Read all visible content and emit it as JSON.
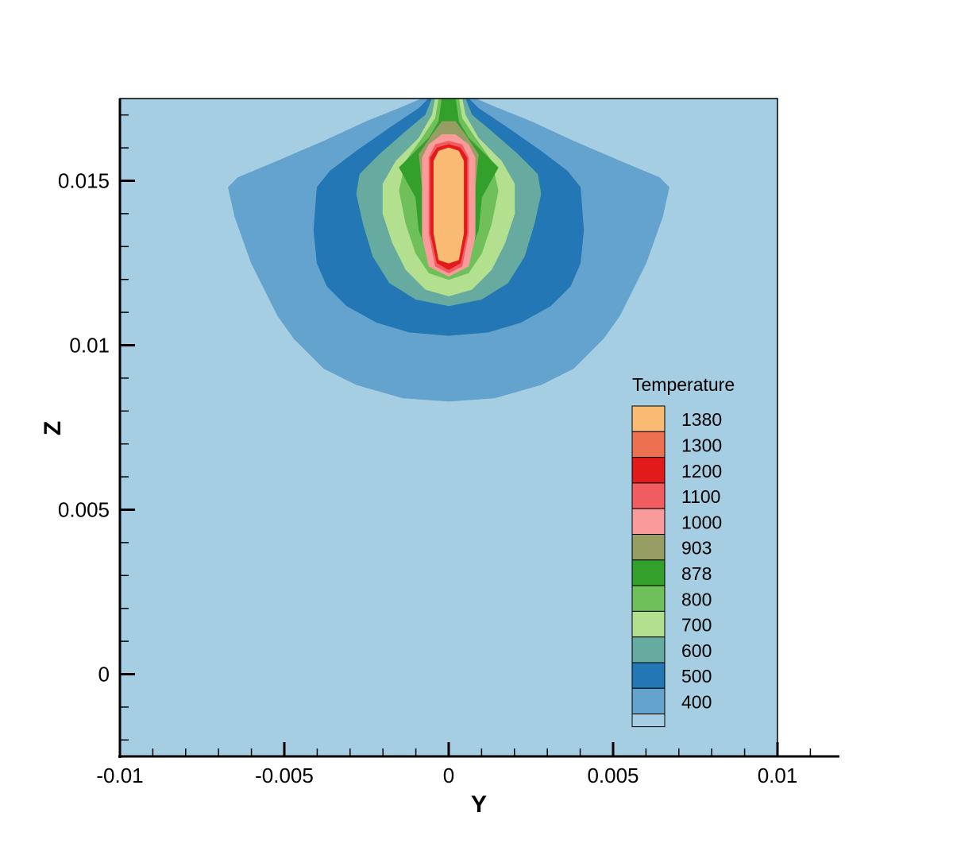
{
  "chart_data": {
    "type": "heatmap",
    "subtype": "filled-contour",
    "xlabel": "Y",
    "ylabel": "Z",
    "xlim": [
      -0.01,
      0.0119
    ],
    "ylim": [
      -0.0025,
      0.0175
    ],
    "plot_region": {
      "x": [
        -0.01,
        0.01
      ],
      "z": [
        -0.0025,
        0.0175
      ]
    },
    "xticks": [
      -0.01,
      -0.005,
      0,
      0.005,
      0.01
    ],
    "xtick_labels": [
      "-0.01",
      "-0.005",
      "0",
      "0.005",
      "0.01"
    ],
    "yticks": [
      0,
      0.005,
      0.01,
      0.015
    ],
    "ytick_labels": [
      "0",
      "0.005",
      "0.01",
      "0.015"
    ],
    "legend": {
      "title": "Temperature",
      "position": "lower-right",
      "levels": [
        {
          "label": "1380",
          "color": "#f9bb74"
        },
        {
          "label": "1300",
          "color": "#ed7151"
        },
        {
          "label": "1200",
          "color": "#e31a1c"
        },
        {
          "label": "1100",
          "color": "#f05c5f"
        },
        {
          "label": "1000",
          "color": "#f99b9a"
        },
        {
          "label": "903",
          "color": "#969e64"
        },
        {
          "label": "878",
          "color": "#33a02c"
        },
        {
          "label": "800",
          "color": "#6fbf5a"
        },
        {
          "label": "700",
          "color": "#b2e08f"
        },
        {
          "label": "600",
          "color": "#66aaa0"
        },
        {
          "label": "500",
          "color": "#2277b4"
        },
        {
          "label": "400",
          "color": "#64a3cd"
        },
        {
          "label": "",
          "color": "#a6cee3"
        }
      ]
    },
    "background_color": "#a6cee3",
    "contours": [
      {
        "level": "500",
        "color": "#64a3cd",
        "points": [
          [
            0,
            0.0083
          ],
          [
            0.0014,
            0.0084
          ],
          [
            0.0028,
            0.0088
          ],
          [
            0.0038,
            0.0093
          ],
          [
            0.0042,
            0.0097
          ],
          [
            0.0047,
            0.0102
          ],
          [
            0.0052,
            0.0109
          ],
          [
            0.006,
            0.0125
          ],
          [
            0.0065,
            0.0139
          ],
          [
            0.0067,
            0.0148
          ],
          [
            0.0064,
            0.0151
          ],
          [
            0.0052,
            0.0156
          ],
          [
            0.0038,
            0.0162
          ],
          [
            0.0025,
            0.0168
          ],
          [
            0.0015,
            0.0172
          ],
          [
            0.0008,
            0.0175
          ],
          [
            -0.0008,
            0.0175
          ],
          [
            -0.0015,
            0.0172
          ],
          [
            -0.0025,
            0.0168
          ],
          [
            -0.0038,
            0.0162
          ],
          [
            -0.0052,
            0.0156
          ],
          [
            -0.0064,
            0.0151
          ],
          [
            -0.0067,
            0.0148
          ],
          [
            -0.0065,
            0.0139
          ],
          [
            -0.006,
            0.0125
          ],
          [
            -0.0052,
            0.0109
          ],
          [
            -0.0047,
            0.0102
          ],
          [
            -0.0042,
            0.0097
          ],
          [
            -0.0038,
            0.0093
          ],
          [
            -0.0028,
            0.0088
          ],
          [
            -0.0014,
            0.0084
          ]
        ]
      },
      {
        "level": "600",
        "color": "#2277b4",
        "points": [
          [
            0,
            0.0103
          ],
          [
            0.0012,
            0.0104
          ],
          [
            0.0022,
            0.0107
          ],
          [
            0.0031,
            0.0112
          ],
          [
            0.0037,
            0.0118
          ],
          [
            0.004,
            0.0125
          ],
          [
            0.0041,
            0.0135
          ],
          [
            0.004,
            0.0148
          ],
          [
            0.0036,
            0.0153
          ],
          [
            0.0028,
            0.0159
          ],
          [
            0.0018,
            0.0166
          ],
          [
            0.0009,
            0.0172
          ],
          [
            0.0006,
            0.0175
          ],
          [
            -0.0006,
            0.0175
          ],
          [
            -0.0009,
            0.0172
          ],
          [
            -0.0018,
            0.0166
          ],
          [
            -0.0028,
            0.0159
          ],
          [
            -0.0036,
            0.0153
          ],
          [
            -0.004,
            0.0148
          ],
          [
            -0.0041,
            0.0135
          ],
          [
            -0.004,
            0.0125
          ],
          [
            -0.0037,
            0.0118
          ],
          [
            -0.0031,
            0.0112
          ],
          [
            -0.0022,
            0.0107
          ],
          [
            -0.0012,
            0.0104
          ]
        ]
      },
      {
        "level": "700",
        "color": "#66aaa0",
        "points": [
          [
            0,
            0.0112
          ],
          [
            0.001,
            0.0114
          ],
          [
            0.0018,
            0.0119
          ],
          [
            0.0023,
            0.0127
          ],
          [
            0.0026,
            0.0137
          ],
          [
            0.0028,
            0.0146
          ],
          [
            0.0027,
            0.0152
          ],
          [
            0.0021,
            0.0158
          ],
          [
            0.0013,
            0.0165
          ],
          [
            0.0007,
            0.017
          ],
          [
            0.0005,
            0.0175
          ],
          [
            -0.0005,
            0.0175
          ],
          [
            -0.0007,
            0.017
          ],
          [
            -0.0013,
            0.0165
          ],
          [
            -0.0021,
            0.0158
          ],
          [
            -0.0027,
            0.0152
          ],
          [
            -0.0028,
            0.0146
          ],
          [
            -0.0026,
            0.0137
          ],
          [
            -0.0023,
            0.0127
          ],
          [
            -0.0018,
            0.0119
          ],
          [
            -0.001,
            0.0114
          ]
        ]
      },
      {
        "level": "800",
        "color": "#b2e08f",
        "points": [
          [
            0,
            0.0115
          ],
          [
            0.0007,
            0.0117
          ],
          [
            0.0013,
            0.0123
          ],
          [
            0.0017,
            0.0131
          ],
          [
            0.002,
            0.014
          ],
          [
            0.002,
            0.0149
          ],
          [
            0.0016,
            0.0156
          ],
          [
            0.0009,
            0.0163
          ],
          [
            0.0005,
            0.017
          ],
          [
            0.0004,
            0.0175
          ],
          [
            -0.0004,
            0.0175
          ],
          [
            -0.0005,
            0.017
          ],
          [
            -0.0009,
            0.0163
          ],
          [
            -0.0016,
            0.0156
          ],
          [
            -0.002,
            0.0149
          ],
          [
            -0.002,
            0.014
          ],
          [
            -0.0017,
            0.0131
          ],
          [
            -0.0013,
            0.0123
          ],
          [
            -0.0007,
            0.0117
          ]
        ]
      },
      {
        "level": "878",
        "color": "#6fbf5a",
        "points": [
          [
            0,
            0.012
          ],
          [
            0.0006,
            0.0122
          ],
          [
            0.001,
            0.0128
          ],
          [
            0.0013,
            0.0137
          ],
          [
            0.0015,
            0.0147
          ],
          [
            0.0013,
            0.0156
          ],
          [
            0.0008,
            0.0163
          ],
          [
            0.0004,
            0.0169
          ],
          [
            0.0003,
            0.0175
          ],
          [
            -0.0003,
            0.0175
          ],
          [
            -0.0004,
            0.0169
          ],
          [
            -0.0008,
            0.0163
          ],
          [
            -0.0013,
            0.0156
          ],
          [
            -0.0015,
            0.0147
          ],
          [
            -0.0013,
            0.0137
          ],
          [
            -0.001,
            0.0128
          ],
          [
            -0.0006,
            0.0122
          ]
        ]
      },
      {
        "level": "903",
        "color": "#33a02c",
        "points": [
          [
            0,
            0.0124
          ],
          [
            0.0006,
            0.0127
          ],
          [
            0.0009,
            0.0135
          ],
          [
            0.001,
            0.0145
          ],
          [
            0.0015,
            0.0154
          ],
          [
            0.0011,
            0.0158
          ],
          [
            0.0006,
            0.0163
          ],
          [
            0.0003,
            0.0168
          ],
          [
            0.0002,
            0.0175
          ],
          [
            -0.0002,
            0.0175
          ],
          [
            -0.0003,
            0.0168
          ],
          [
            -0.0006,
            0.0163
          ],
          [
            -0.0011,
            0.0158
          ],
          [
            -0.0015,
            0.0154
          ],
          [
            -0.001,
            0.0145
          ],
          [
            -0.0009,
            0.0135
          ],
          [
            -0.0006,
            0.0127
          ]
        ]
      },
      {
        "level": "1000",
        "color": "#969e64",
        "points": [
          [
            0,
            0.0125
          ],
          [
            0.0006,
            0.0128
          ],
          [
            0.0008,
            0.0137
          ],
          [
            0.0008,
            0.0148
          ],
          [
            0.0009,
            0.0158
          ],
          [
            0.0005,
            0.0164
          ],
          [
            0.0002,
            0.0168
          ],
          [
            -0.0002,
            0.0168
          ],
          [
            -0.0005,
            0.0164
          ],
          [
            -0.0009,
            0.0158
          ],
          [
            -0.0008,
            0.0148
          ],
          [
            -0.0008,
            0.0137
          ],
          [
            -0.0006,
            0.0128
          ]
        ]
      },
      {
        "level": "1100",
        "color": "#f99b9a",
        "points": [
          [
            0,
            0.0121
          ],
          [
            0.0006,
            0.0124
          ],
          [
            0.0008,
            0.0133
          ],
          [
            0.0008,
            0.0146
          ],
          [
            0.0008,
            0.0157
          ],
          [
            0.0006,
            0.0161
          ],
          [
            0.0002,
            0.0164
          ],
          [
            -0.0002,
            0.0164
          ],
          [
            -0.0006,
            0.0161
          ],
          [
            -0.0008,
            0.0157
          ],
          [
            -0.0008,
            0.0146
          ],
          [
            -0.0008,
            0.0133
          ],
          [
            -0.0006,
            0.0124
          ]
        ]
      },
      {
        "level": "1200",
        "color": "#f05c5f",
        "points": [
          [
            0,
            0.0122
          ],
          [
            0.0004,
            0.0124
          ],
          [
            0.0006,
            0.0134
          ],
          [
            0.0006,
            0.0146
          ],
          [
            0.0006,
            0.0157
          ],
          [
            0.0004,
            0.0161
          ],
          [
            0,
            0.0162
          ],
          [
            -0.0004,
            0.0161
          ],
          [
            -0.0006,
            0.0157
          ],
          [
            -0.0006,
            0.0146
          ],
          [
            -0.0006,
            0.0134
          ],
          [
            -0.0004,
            0.0124
          ]
        ]
      },
      {
        "level": "1300",
        "color": "#e31a1c",
        "points": [
          [
            0,
            0.0123
          ],
          [
            0.00035,
            0.0125
          ],
          [
            0.00055,
            0.0134
          ],
          [
            0.00055,
            0.0146
          ],
          [
            0.00055,
            0.0157
          ],
          [
            0.00035,
            0.016
          ],
          [
            0,
            0.0161
          ],
          [
            -0.00035,
            0.016
          ],
          [
            -0.00055,
            0.0157
          ],
          [
            -0.00055,
            0.0146
          ],
          [
            -0.00055,
            0.0134
          ],
          [
            -0.00035,
            0.0125
          ]
        ]
      },
      {
        "level": "1380",
        "color": "#f9bb74",
        "points": [
          [
            0,
            0.0125
          ],
          [
            0.0003,
            0.0126
          ],
          [
            0.00045,
            0.0134
          ],
          [
            0.00045,
            0.0146
          ],
          [
            0.00045,
            0.0156
          ],
          [
            0.0003,
            0.0159
          ],
          [
            0,
            0.016
          ],
          [
            -0.0003,
            0.0159
          ],
          [
            -0.00045,
            0.0156
          ],
          [
            -0.00045,
            0.0146
          ],
          [
            -0.00045,
            0.0134
          ],
          [
            -0.0003,
            0.0126
          ]
        ]
      }
    ]
  }
}
